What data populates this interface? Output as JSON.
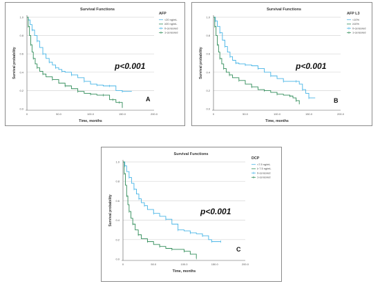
{
  "colors": {
    "series_1": "#45b4e6",
    "series_2": "#2e8b57",
    "grid": "#d6d6d6",
    "axis": "#555555"
  },
  "chart_data": [
    {
      "type": "line",
      "title": "Survival Functions",
      "xlabel": "Time, months",
      "ylabel": "Survival probability",
      "xlim": [
        0,
        200
      ],
      "ylim": [
        0,
        1
      ],
      "x_ticks": [
        "0",
        "50.0",
        "100.0",
        "150.0",
        "200.0"
      ],
      "y_ticks": [
        "0.0",
        "0.2",
        "0.4",
        "0.6",
        "0.8",
        "1.0"
      ],
      "legend_title": "AFP",
      "legend": [
        "<20 ng/mL",
        "≥20 ng/mL",
        "0-censored",
        "1-censored"
      ],
      "annotation": "p<0.001",
      "panel_label": "A",
      "series": [
        {
          "name": "<20 ng/mL",
          "x": [
            0,
            2,
            5,
            8,
            12,
            16,
            20,
            25,
            30,
            35,
            40,
            45,
            50,
            55,
            60,
            70,
            80,
            90,
            100,
            110,
            120,
            130,
            140,
            150,
            165
          ],
          "y": [
            1.0,
            0.97,
            0.92,
            0.86,
            0.8,
            0.74,
            0.67,
            0.6,
            0.55,
            0.51,
            0.48,
            0.45,
            0.43,
            0.41,
            0.4,
            0.37,
            0.34,
            0.3,
            0.27,
            0.26,
            0.25,
            0.25,
            0.2,
            0.19,
            0.19
          ]
        },
        {
          "name": "≥20 ng/mL",
          "x": [
            0,
            2,
            4,
            6,
            8,
            10,
            13,
            16,
            20,
            25,
            30,
            40,
            50,
            60,
            70,
            80,
            90,
            100,
            110,
            120,
            130,
            135,
            140,
            145,
            150
          ],
          "y": [
            1.0,
            0.9,
            0.8,
            0.7,
            0.62,
            0.55,
            0.49,
            0.45,
            0.41,
            0.38,
            0.35,
            0.32,
            0.28,
            0.25,
            0.22,
            0.19,
            0.17,
            0.16,
            0.15,
            0.15,
            0.1,
            0.1,
            0.07,
            0.07,
            0.01
          ]
        }
      ]
    },
    {
      "type": "line",
      "title": "Survival Functions",
      "xlabel": "Time, months",
      "ylabel": "Survival probability",
      "xlim": [
        0,
        200
      ],
      "ylim": [
        0,
        1
      ],
      "x_ticks": [
        "0",
        "50.0",
        "100.0",
        "150.0",
        "200.0"
      ],
      "y_ticks": [
        "0.0",
        "0.2",
        "0.4",
        "0.6",
        "0.8",
        "1.0"
      ],
      "legend_title": "AFP L3",
      "legend": [
        "<10%",
        "≥10%",
        "0-censored",
        "1-censored"
      ],
      "annotation": "p<0.001",
      "panel_label": "B",
      "series": [
        {
          "name": "<10%",
          "x": [
            0,
            3,
            6,
            10,
            14,
            18,
            22,
            26,
            30,
            35,
            40,
            50,
            60,
            70,
            80,
            90,
            100,
            110,
            120,
            130,
            135,
            140,
            145,
            150,
            160
          ],
          "y": [
            1.0,
            0.96,
            0.9,
            0.83,
            0.75,
            0.68,
            0.62,
            0.57,
            0.53,
            0.5,
            0.49,
            0.48,
            0.47,
            0.44,
            0.4,
            0.36,
            0.33,
            0.3,
            0.3,
            0.3,
            0.27,
            0.21,
            0.17,
            0.12,
            0.12
          ]
        },
        {
          "name": "≥10%",
          "x": [
            0,
            2,
            4,
            6,
            8,
            10,
            13,
            16,
            20,
            25,
            30,
            40,
            50,
            60,
            70,
            80,
            90,
            100,
            110,
            120,
            125,
            130,
            135
          ],
          "y": [
            1.0,
            0.9,
            0.8,
            0.7,
            0.62,
            0.55,
            0.49,
            0.44,
            0.4,
            0.37,
            0.34,
            0.31,
            0.27,
            0.24,
            0.21,
            0.2,
            0.18,
            0.16,
            0.15,
            0.14,
            0.12,
            0.09,
            0.05
          ]
        }
      ]
    },
    {
      "type": "line",
      "title": "Survival Functions",
      "xlabel": "Time, months",
      "ylabel": "Survival probability",
      "xlim": [
        0,
        200
      ],
      "ylim": [
        0,
        1
      ],
      "x_ticks": [
        "0",
        "50.0",
        "100.0",
        "150.0",
        "200.0"
      ],
      "y_ticks": [
        "0.0",
        "0.2",
        "0.4",
        "0.6",
        "0.8",
        "1.0"
      ],
      "legend_title": "DCP",
      "legend": [
        "<7.5 ng/mL",
        "≥ 7.5 ng/mL",
        "0-censored",
        "1-censored"
      ],
      "annotation": "p<0.001",
      "panel_label": "C",
      "series": [
        {
          "name": "<7.5 ng/mL",
          "x": [
            0,
            3,
            6,
            10,
            14,
            18,
            22,
            26,
            30,
            35,
            40,
            50,
            60,
            70,
            80,
            90,
            100,
            110,
            120,
            130,
            140,
            145,
            150,
            160
          ],
          "y": [
            1.0,
            0.96,
            0.9,
            0.84,
            0.78,
            0.72,
            0.67,
            0.62,
            0.58,
            0.55,
            0.51,
            0.47,
            0.44,
            0.41,
            0.36,
            0.3,
            0.29,
            0.27,
            0.26,
            0.24,
            0.2,
            0.18,
            0.18,
            0.18
          ]
        },
        {
          "name": "≥ 7.5 ng/mL",
          "x": [
            0,
            2,
            4,
            6,
            8,
            10,
            13,
            16,
            20,
            25,
            30,
            40,
            50,
            60,
            70,
            80,
            90,
            100,
            110,
            120
          ],
          "y": [
            1.0,
            0.88,
            0.76,
            0.65,
            0.56,
            0.49,
            0.42,
            0.36,
            0.3,
            0.25,
            0.21,
            0.18,
            0.15,
            0.13,
            0.11,
            0.1,
            0.1,
            0.08,
            0.05,
            0.01
          ]
        }
      ]
    }
  ]
}
